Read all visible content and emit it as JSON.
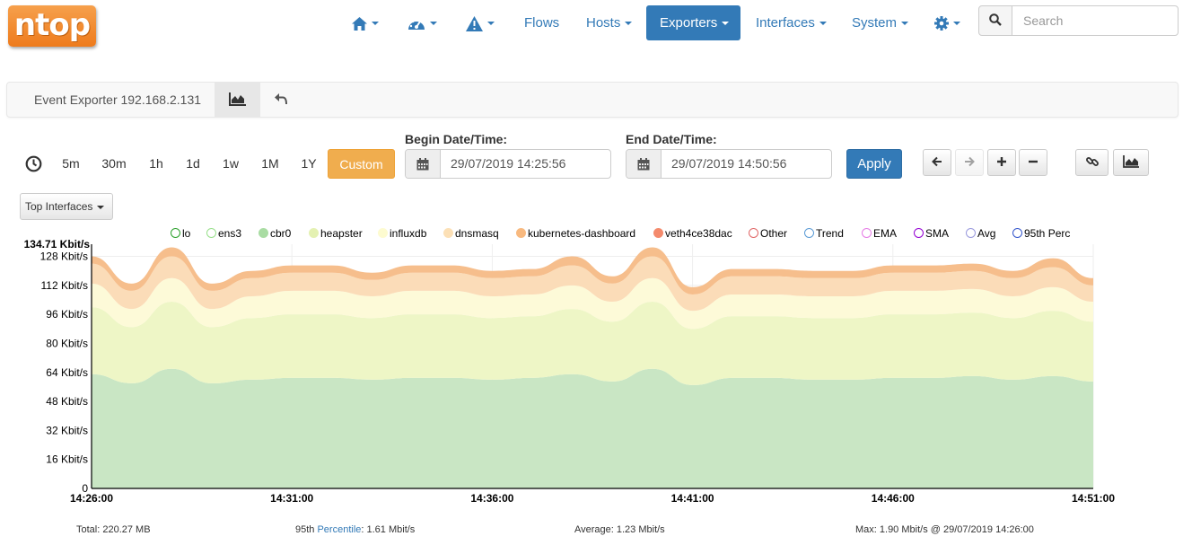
{
  "brand": {
    "logo_text": "ntop"
  },
  "nav": {
    "items": [
      {
        "icon": "home-icon",
        "label": ""
      },
      {
        "icon": "dashboard-icon",
        "label": ""
      },
      {
        "icon": "alert-icon",
        "label": ""
      },
      {
        "icon": "",
        "label": "Flows"
      },
      {
        "icon": "",
        "label": "Hosts"
      },
      {
        "icon": "",
        "label": "Exporters"
      },
      {
        "icon": "",
        "label": "Interfaces"
      },
      {
        "icon": "",
        "label": "System"
      },
      {
        "icon": "gear-icon",
        "label": ""
      }
    ],
    "active": "Exporters",
    "search_placeholder": "Search"
  },
  "breadcrumb": {
    "title": "Event Exporter 192.168.2.131"
  },
  "time_controls": {
    "presets": [
      "5m",
      "30m",
      "1h",
      "1d",
      "1w",
      "1M",
      "1Y"
    ],
    "custom_label": "Custom",
    "begin_label": "Begin Date/Time:",
    "begin_value": "29/07/2019 14:25:56",
    "end_label": "End Date/Time:",
    "end_value": "29/07/2019 14:50:56",
    "apply_label": "Apply",
    "top_dropdown": "Top Interfaces"
  },
  "legend": [
    {
      "name": "lo",
      "color": "#2ca02c",
      "filled": false
    },
    {
      "name": "ens3",
      "color": "#98df8a",
      "filled": false
    },
    {
      "name": "cbr0",
      "color": "#a9dca3",
      "filled": true
    },
    {
      "name": "heapster",
      "color": "#e4f1b2",
      "filled": true
    },
    {
      "name": "influxdb",
      "color": "#fdfbd0",
      "filled": true
    },
    {
      "name": "dnsmasq",
      "color": "#fce0b6",
      "filled": true
    },
    {
      "name": "kubernetes-dashboard",
      "color": "#f8b97f",
      "filled": true
    },
    {
      "name": "veth4ce38dac",
      "color": "#f48a6c",
      "filled": true
    },
    {
      "name": "Other",
      "color": "#e06666",
      "filled": false
    },
    {
      "name": "Trend",
      "color": "#5b9bd5",
      "filled": false
    },
    {
      "name": "EMA",
      "color": "#e67be6",
      "filled": false
    },
    {
      "name": "SMA",
      "color": "#9400d3",
      "filled": false
    },
    {
      "name": "Avg",
      "color": "#9999dd",
      "filled": false
    },
    {
      "name": "95th Perc",
      "color": "#3355cc",
      "filled": false
    }
  ],
  "chart_data": {
    "type": "area",
    "stacked": true,
    "y_unit": "Kbit/s",
    "y_max_label": "134.71 Kbit/s",
    "ylim": [
      0,
      134.71
    ],
    "y_ticks": [
      0,
      16,
      32,
      48,
      64,
      80,
      96,
      112,
      128
    ],
    "y_tick_labels": [
      "0",
      "16 Kbit/s",
      "32 Kbit/s",
      "48 Kbit/s",
      "64 Kbit/s",
      "80 Kbit/s",
      "96 Kbit/s",
      "112 Kbit/s",
      "128 Kbit/s"
    ],
    "x_tick_labels": [
      "14:26:00",
      "14:31:00",
      "14:36:00",
      "14:41:00",
      "14:46:00",
      "14:51:00"
    ],
    "x": [
      "14:26:00",
      "14:27:00",
      "14:28:00",
      "14:29:00",
      "14:30:00",
      "14:31:00",
      "14:32:00",
      "14:33:00",
      "14:34:00",
      "14:35:00",
      "14:36:00",
      "14:37:00",
      "14:38:00",
      "14:39:00",
      "14:40:00",
      "14:41:00",
      "14:42:00",
      "14:43:00",
      "14:44:00",
      "14:45:00",
      "14:46:00",
      "14:47:00",
      "14:48:00",
      "14:49:00",
      "14:50:00",
      "14:51:00"
    ],
    "series": [
      {
        "name": "cbr0",
        "color": "#c9e6c4",
        "values": [
          63,
          58,
          66,
          58,
          60,
          61,
          61,
          60,
          61,
          61,
          60,
          61,
          63,
          59,
          66,
          57,
          61,
          61,
          60,
          60,
          61,
          61,
          62,
          60,
          62,
          59
        ]
      },
      {
        "name": "heapster",
        "color": "#eef6c6",
        "values": [
          37,
          31,
          37,
          31,
          34,
          35,
          35,
          34,
          35,
          35,
          34,
          34,
          36,
          33,
          37,
          31,
          34,
          34,
          34,
          34,
          35,
          35,
          35,
          34,
          36,
          33
        ]
      },
      {
        "name": "influxdb",
        "color": "#fdfad8",
        "values": [
          13,
          10,
          13,
          10,
          12,
          13,
          13,
          12,
          13,
          13,
          12,
          12,
          13,
          11,
          13,
          10,
          12,
          12,
          12,
          12,
          13,
          13,
          13,
          12,
          13,
          11
        ]
      },
      {
        "name": "dnsmasq",
        "color": "#fbdcb8",
        "values": [
          11,
          10,
          12,
          10,
          10,
          10,
          10,
          9,
          10,
          10,
          10,
          10,
          11,
          10,
          12,
          9,
          10,
          10,
          10,
          10,
          10,
          10,
          10,
          10,
          11,
          9
        ]
      },
      {
        "name": "kubernetes-dashboard",
        "color": "#f6be8c",
        "values": [
          4,
          4,
          5,
          4,
          4,
          4,
          4,
          4,
          4,
          4,
          4,
          4,
          5,
          4,
          5,
          4,
          4,
          4,
          4,
          4,
          4,
          4,
          4,
          4,
          5,
          4
        ]
      }
    ]
  },
  "stats": {
    "total": "Total: 220.27 MB",
    "p95_prefix": "95th ",
    "p95_link": "Percentile",
    "p95_suffix": ": 1.61 Mbit/s",
    "average": "Average: 1.23 Mbit/s",
    "max": "Max: 1.90 Mbit/s @ 29/07/2019 14:26:00"
  }
}
